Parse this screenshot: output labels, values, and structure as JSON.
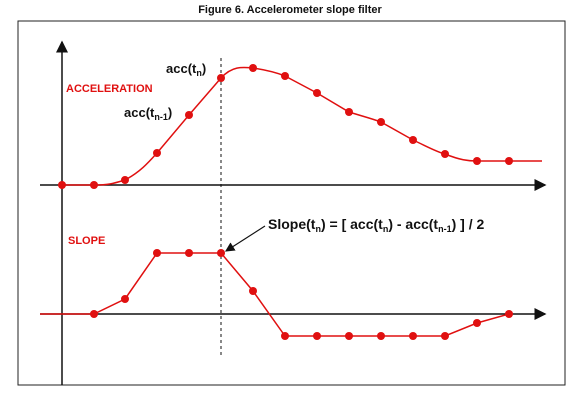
{
  "header": {
    "title": "Figure 6. Accelerometer slope filter"
  },
  "labels": {
    "acceleration": "ACCELERATION",
    "slope": "SLOPE",
    "acc_tn": {
      "base": "acc(t",
      "sub": "n",
      "close": ")"
    },
    "acc_tn1": {
      "base": "acc(t",
      "sub": "n-1",
      "close": ")"
    },
    "equation": [
      "Slope(t",
      "n",
      ") = [ acc(t",
      "n",
      ") - acc(t",
      "n-1",
      ") ] / 2"
    ]
  }
}
